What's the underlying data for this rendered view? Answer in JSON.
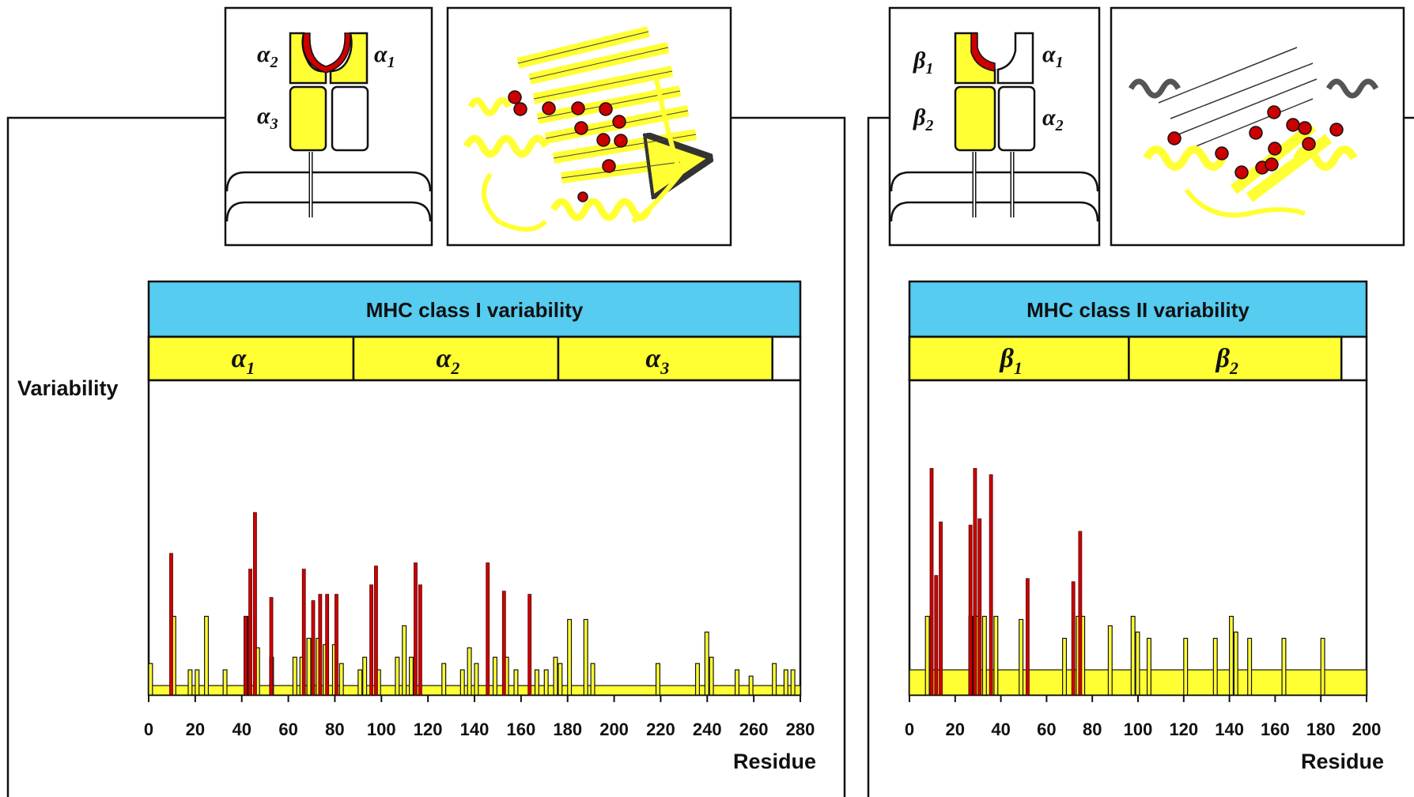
{
  "chart_data": [
    {
      "type": "bar",
      "title": "MHC class I variability",
      "ylabel": "Variability",
      "xlabel": "Residue",
      "xlim": [
        0,
        280
      ],
      "ylim": [
        0,
        100
      ],
      "xticks": [
        "0",
        "20",
        "40",
        "60",
        "80",
        "100",
        "120",
        "140",
        "160",
        "180",
        "200",
        "220",
        "240",
        "260",
        "280"
      ],
      "domains": [
        {
          "name": "α",
          "sub": "1",
          "start": 0,
          "end": 88
        },
        {
          "name": "α",
          "sub": "2",
          "start": 88,
          "end": 176
        },
        {
          "name": "α",
          "sub": "3",
          "start": 176,
          "end": 268
        }
      ],
      "baseline": 3,
      "colors": {
        "background": "#ffff33",
        "highlight": "#cc0000",
        "title_bar": "#55ccf0"
      },
      "background_bars": [
        {
          "x": 0,
          "y": 10
        },
        {
          "x": 10,
          "y": 25
        },
        {
          "x": 17,
          "y": 8
        },
        {
          "x": 20,
          "y": 8
        },
        {
          "x": 24,
          "y": 25
        },
        {
          "x": 32,
          "y": 8
        },
        {
          "x": 41,
          "y": 25
        },
        {
          "x": 46,
          "y": 15
        },
        {
          "x": 52,
          "y": 12
        },
        {
          "x": 62,
          "y": 12
        },
        {
          "x": 65,
          "y": 12
        },
        {
          "x": 68,
          "y": 18
        },
        {
          "x": 72,
          "y": 18
        },
        {
          "x": 75,
          "y": 16
        },
        {
          "x": 79,
          "y": 16
        },
        {
          "x": 82,
          "y": 10
        },
        {
          "x": 90,
          "y": 8
        },
        {
          "x": 92,
          "y": 12
        },
        {
          "x": 98,
          "y": 8
        },
        {
          "x": 106,
          "y": 12
        },
        {
          "x": 109,
          "y": 22
        },
        {
          "x": 112,
          "y": 12
        },
        {
          "x": 126,
          "y": 10
        },
        {
          "x": 134,
          "y": 8
        },
        {
          "x": 137,
          "y": 15
        },
        {
          "x": 140,
          "y": 10
        },
        {
          "x": 148,
          "y": 12
        },
        {
          "x": 153,
          "y": 12
        },
        {
          "x": 157,
          "y": 8
        },
        {
          "x": 166,
          "y": 8
        },
        {
          "x": 170,
          "y": 8
        },
        {
          "x": 174,
          "y": 12
        },
        {
          "x": 176,
          "y": 10
        },
        {
          "x": 180,
          "y": 24
        },
        {
          "x": 187,
          "y": 24
        },
        {
          "x": 190,
          "y": 10
        },
        {
          "x": 218,
          "y": 10
        },
        {
          "x": 235,
          "y": 10
        },
        {
          "x": 239,
          "y": 20
        },
        {
          "x": 241,
          "y": 12
        },
        {
          "x": 252,
          "y": 8
        },
        {
          "x": 258,
          "y": 6
        },
        {
          "x": 268,
          "y": 10
        },
        {
          "x": 273,
          "y": 8
        },
        {
          "x": 276,
          "y": 8
        }
      ],
      "highlight_bars": [
        {
          "x": 9,
          "y": 45
        },
        {
          "x": 41,
          "y": 25
        },
        {
          "x": 43,
          "y": 40
        },
        {
          "x": 45,
          "y": 58
        },
        {
          "x": 52,
          "y": 31
        },
        {
          "x": 66,
          "y": 40
        },
        {
          "x": 70,
          "y": 30
        },
        {
          "x": 73,
          "y": 32
        },
        {
          "x": 76,
          "y": 32
        },
        {
          "x": 80,
          "y": 32
        },
        {
          "x": 95,
          "y": 35
        },
        {
          "x": 97,
          "y": 41
        },
        {
          "x": 114,
          "y": 42
        },
        {
          "x": 116,
          "y": 35
        },
        {
          "x": 145,
          "y": 42
        },
        {
          "x": 152,
          "y": 33
        },
        {
          "x": 163,
          "y": 32
        }
      ],
      "glyph_labels": {
        "left_top": "α",
        "left_top_sub": "2",
        "right_top": "α",
        "right_top_sub": "1",
        "left_bottom": "α",
        "left_bottom_sub": "3"
      }
    },
    {
      "type": "bar",
      "title": "MHC class II variability",
      "xlabel": "Residue",
      "xlim": [
        0,
        200
      ],
      "ylim": [
        0,
        100
      ],
      "xticks": [
        "0",
        "20",
        "40",
        "60",
        "80",
        "100",
        "120",
        "140",
        "160",
        "180",
        "200"
      ],
      "domains": [
        {
          "name": "β",
          "sub": "1",
          "start": 0,
          "end": 96
        },
        {
          "name": "β",
          "sub": "2",
          "start": 96,
          "end": 189
        }
      ],
      "baseline": 8,
      "colors": {
        "background": "#ffff33",
        "highlight": "#cc0000",
        "title_bar": "#55ccf0"
      },
      "background_bars": [
        {
          "x": 7,
          "y": 25
        },
        {
          "x": 26,
          "y": 25
        },
        {
          "x": 29,
          "y": 25
        },
        {
          "x": 32,
          "y": 25
        },
        {
          "x": 37,
          "y": 25
        },
        {
          "x": 48,
          "y": 24
        },
        {
          "x": 67,
          "y": 18
        },
        {
          "x": 73,
          "y": 25
        },
        {
          "x": 75,
          "y": 25
        },
        {
          "x": 87,
          "y": 22
        },
        {
          "x": 97,
          "y": 25
        },
        {
          "x": 99,
          "y": 20
        },
        {
          "x": 104,
          "y": 18
        },
        {
          "x": 120,
          "y": 18
        },
        {
          "x": 133,
          "y": 18
        },
        {
          "x": 140,
          "y": 25
        },
        {
          "x": 142,
          "y": 20
        },
        {
          "x": 148,
          "y": 18
        },
        {
          "x": 163,
          "y": 18
        },
        {
          "x": 180,
          "y": 18
        }
      ],
      "highlight_bars": [
        {
          "x": 9,
          "y": 72
        },
        {
          "x": 11,
          "y": 38
        },
        {
          "x": 13,
          "y": 55
        },
        {
          "x": 26,
          "y": 54
        },
        {
          "x": 28,
          "y": 72
        },
        {
          "x": 30,
          "y": 56
        },
        {
          "x": 35,
          "y": 70
        },
        {
          "x": 51,
          "y": 37
        },
        {
          "x": 71,
          "y": 36
        },
        {
          "x": 74,
          "y": 52
        }
      ],
      "glyph_labels": {
        "left_top": "β",
        "left_top_sub": "1",
        "right_top": "α",
        "right_top_sub": "1",
        "left_bottom": "β",
        "left_bottom_sub": "2",
        "right_bottom": "α",
        "right_bottom_sub": "2"
      }
    }
  ]
}
